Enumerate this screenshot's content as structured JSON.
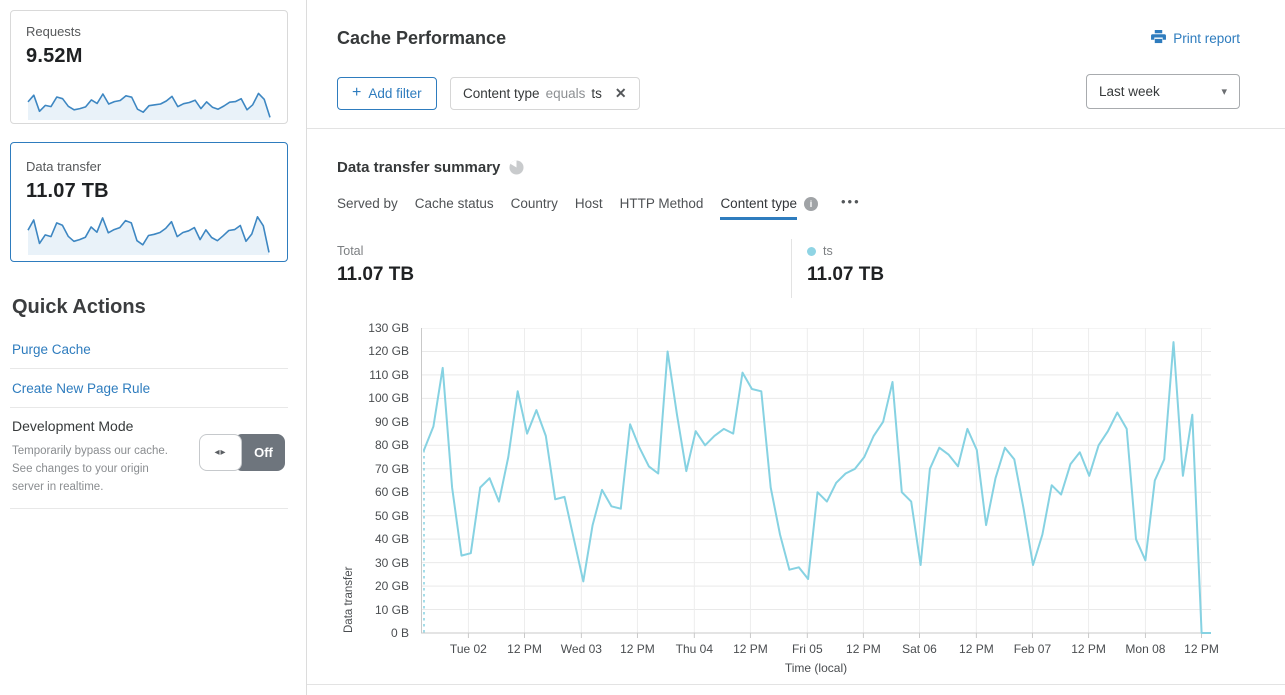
{
  "colors": {
    "accent": "#2e7cbe",
    "chart_line": "#86d2e2",
    "spark_line": "#3e87c2",
    "spark_fill": "#e9f2f9",
    "legend_dot": "#8fd4e4",
    "toggle_off_bg": "#6e757d"
  },
  "icons": {
    "add": "+",
    "close": "✕",
    "caret": "▾",
    "toggle_arrows": "◂▸",
    "info": "i",
    "more": "•••"
  },
  "sidebar": {
    "cards": [
      {
        "label": "Requests",
        "value": "9.52M",
        "selected": false,
        "sparkline": [
          55,
          78,
          23,
          43,
          39,
          72,
          66,
          40,
          28,
          32,
          38,
          62,
          50,
          82,
          48,
          56,
          60,
          76,
          71,
          30,
          20,
          42,
          45,
          48,
          58,
          74,
          39,
          49,
          53,
          61,
          32,
          55,
          37,
          30,
          41,
          54,
          56,
          66,
          28,
          45,
          84,
          64,
          2
        ]
      },
      {
        "label": "Data transfer",
        "value": "11.07 TB",
        "selected": true,
        "sparkline": [
          78,
          113,
          33,
          62,
          56,
          103,
          95,
          57,
          40,
          46,
          54,
          89,
          71,
          120,
          69,
          80,
          87,
          111,
          103,
          42,
          28,
          60,
          64,
          70,
          84,
          107,
          56,
          70,
          76,
          87,
          46,
          79,
          53,
          42,
          59,
          77,
          80,
          94,
          40,
          65,
          124,
          93,
          2
        ]
      }
    ],
    "quick_actions": {
      "title": "Quick Actions",
      "links": [
        "Purge Cache",
        "Create New Page Rule"
      ],
      "dev_mode": {
        "title": "Development Mode",
        "description": "Temporarily bypass our cache. See changes to your origin server in realtime.",
        "toggle_state": "Off"
      }
    }
  },
  "header": {
    "title": "Cache Performance",
    "print_label": "Print report"
  },
  "filters": {
    "add_label": "Add filter",
    "chip": {
      "field": "Content type",
      "operator": "equals",
      "value": "ts"
    },
    "time_range": "Last week"
  },
  "summary": {
    "title": "Data transfer summary",
    "tabs": [
      {
        "label": "Served by",
        "active": false
      },
      {
        "label": "Cache status",
        "active": false
      },
      {
        "label": "Country",
        "active": false
      },
      {
        "label": "Host",
        "active": false
      },
      {
        "label": "HTTP Method",
        "active": false
      },
      {
        "label": "Content type",
        "active": true,
        "has_info": true
      }
    ],
    "total": {
      "label": "Total",
      "value": "11.07 TB"
    },
    "legend": [
      {
        "label": "ts",
        "value": "11.07 TB",
        "color": "#8fd4e4"
      }
    ]
  },
  "chart_data": {
    "type": "line",
    "title": "Data transfer summary",
    "ylabel": "Data transfer",
    "xlabel": "Time (local)",
    "ylim": [
      0,
      130
    ],
    "y_unit": "GB",
    "grid": true,
    "legend_position": "top-right",
    "sample_interval_hours": 2,
    "y_ticks": [
      "0 B",
      "10 GB",
      "20 GB",
      "30 GB",
      "40 GB",
      "50 GB",
      "60 GB",
      "70 GB",
      "80 GB",
      "90 GB",
      "100 GB",
      "110 GB",
      "120 GB",
      "130 GB"
    ],
    "x_ticks": [
      {
        "label": "Tue 02",
        "pos": 0.06
      },
      {
        "label": "12 PM",
        "pos": 0.131
      },
      {
        "label": "Wed 03",
        "pos": 0.203
      },
      {
        "label": "12 PM",
        "pos": 0.274
      },
      {
        "label": "Thu 04",
        "pos": 0.346
      },
      {
        "label": "12 PM",
        "pos": 0.417
      },
      {
        "label": "Fri 05",
        "pos": 0.489
      },
      {
        "label": "12 PM",
        "pos": 0.56
      },
      {
        "label": "Sat 06",
        "pos": 0.631
      },
      {
        "label": "12 PM",
        "pos": 0.703
      },
      {
        "label": "Feb 07",
        "pos": 0.774
      },
      {
        "label": "12 PM",
        "pos": 0.845
      },
      {
        "label": "Mon 08",
        "pos": 0.917
      },
      {
        "label": "12 PM",
        "pos": 0.988
      }
    ],
    "series": [
      {
        "name": "ts",
        "color": "#86d2e2",
        "values_gb": [
          78,
          88,
          113,
          62,
          33,
          34,
          62,
          66,
          56,
          75,
          103,
          85,
          95,
          84,
          57,
          58,
          40,
          22,
          46,
          61,
          54,
          53,
          89,
          79,
          71,
          68,
          120,
          93,
          69,
          86,
          80,
          84,
          87,
          85,
          111,
          104,
          103,
          62,
          42,
          27,
          28,
          23,
          60,
          56,
          64,
          68,
          70,
          75,
          84,
          90,
          107,
          60,
          56,
          29,
          70,
          79,
          76,
          71,
          87,
          78,
          46,
          66,
          79,
          74,
          53,
          29,
          42,
          63,
          59,
          72,
          77,
          67,
          80,
          86,
          94,
          87,
          40,
          31,
          65,
          74,
          124,
          67,
          93,
          0,
          0
        ]
      }
    ]
  }
}
